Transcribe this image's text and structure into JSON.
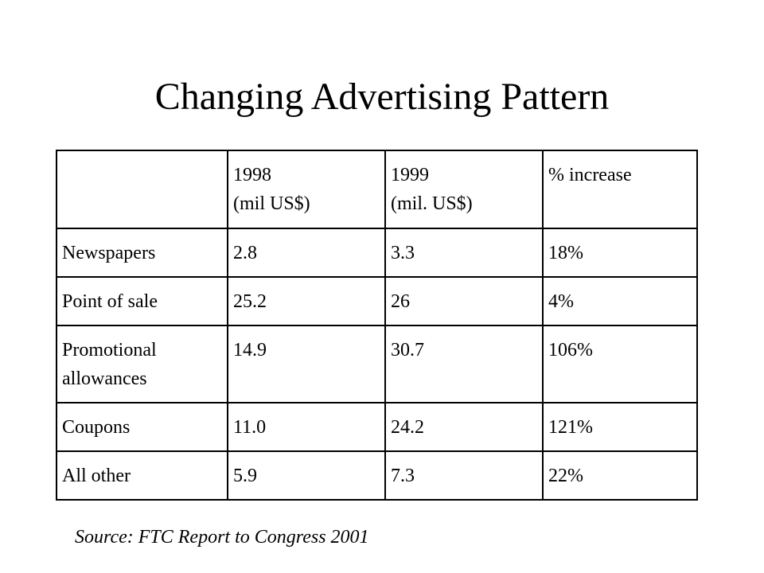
{
  "slide": {
    "title": "Changing Advertising Pattern",
    "source": "Source: FTC Report to Congress 2001"
  },
  "table": {
    "header": {
      "col0": "",
      "col1": {
        "line1": "1998",
        "line2": "(mil US$)"
      },
      "col2": {
        "line1": "1999",
        "line2": "(mil. US$)"
      },
      "col3": "% increase"
    },
    "rows": [
      {
        "label": "Newspapers",
        "y1998": "2.8",
        "y1999": "3.3",
        "increase": "18%"
      },
      {
        "label": "Point of sale",
        "y1998": "25.2",
        "y1999": "26",
        "increase": "4%"
      },
      {
        "label_line1": "Promotional",
        "label_line2": "allowances",
        "y1998": "14.9",
        "y1999": "30.7",
        "increase": "106%"
      },
      {
        "label": "Coupons",
        "y1998": "11.0",
        "y1999": "24.2",
        "increase": "121%"
      },
      {
        "label": "All other",
        "y1998": "5.9",
        "y1999": "7.3",
        "increase": "22%"
      }
    ]
  }
}
